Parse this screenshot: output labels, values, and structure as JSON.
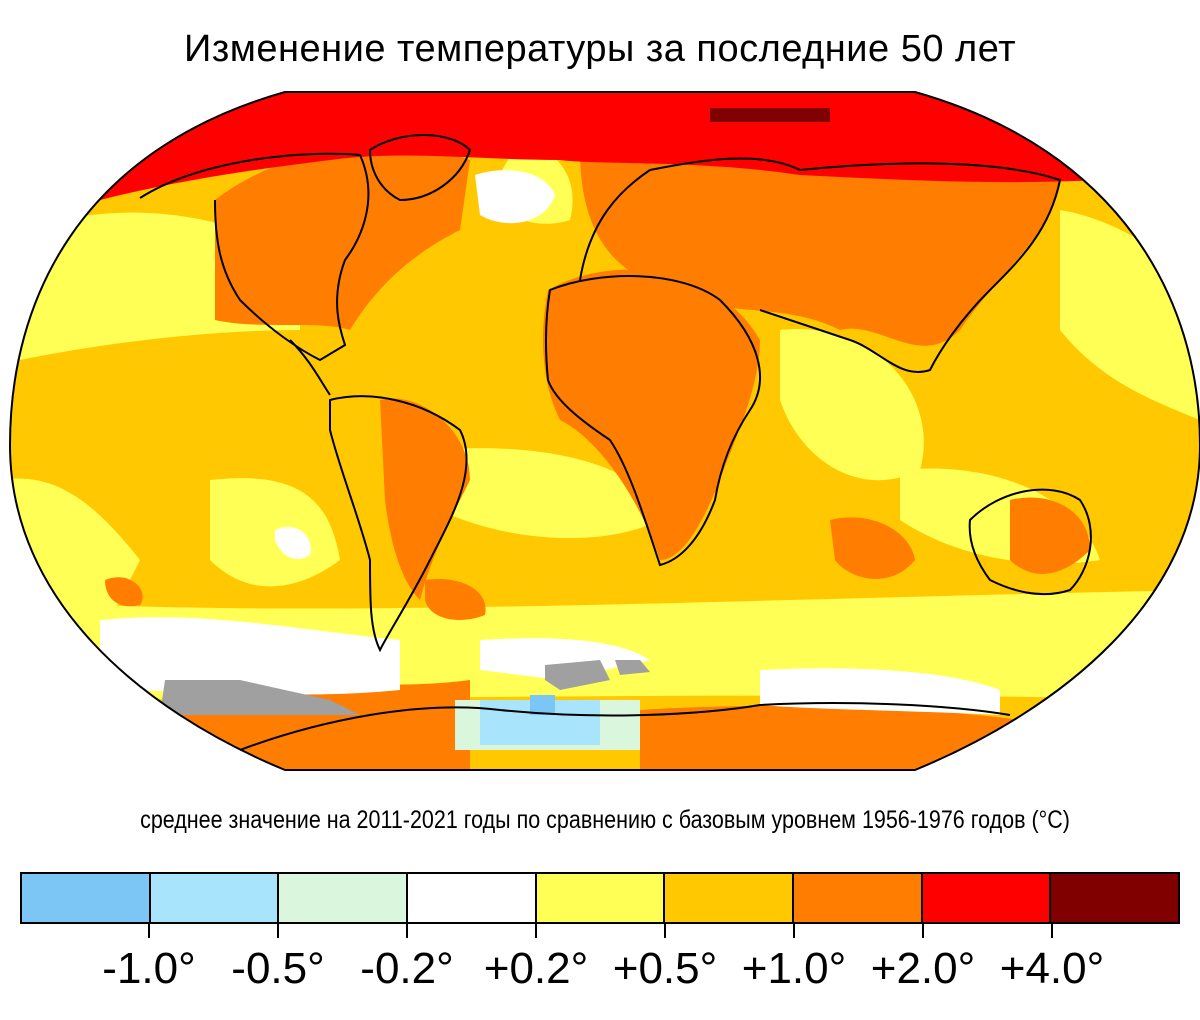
{
  "title": "Изменение температуры за последние 50 лет",
  "subtitle": "среднее значение на 2011-2021 годы по сравнению с базовым уровнем 1956-1976 годов (°C)",
  "legend": {
    "colors": [
      "#7cc6f5",
      "#a8e4fb",
      "#daf6dc",
      "#ffffff",
      "#ffff55",
      "#ffc800",
      "#ff7d00",
      "#ff0000",
      "#800000"
    ],
    "labels": [
      "-1.0°",
      "-0.5°",
      "-0.2°",
      "+0.2°",
      "+0.5°",
      "+1.0°",
      "+2.0°",
      "+4.0°"
    ]
  },
  "map_colors": {
    "ocean_base": "#ffc800",
    "warm": "#ff7d00",
    "hot": "#ff0000",
    "very_hot": "#800000",
    "mild": "#ffff55",
    "neutral": "#ffffff",
    "cool": "#daf6dc",
    "cold": "#a8e4fb",
    "colder": "#7cc6f5",
    "no_data": "#a0a0a0",
    "coast": "#000000"
  }
}
